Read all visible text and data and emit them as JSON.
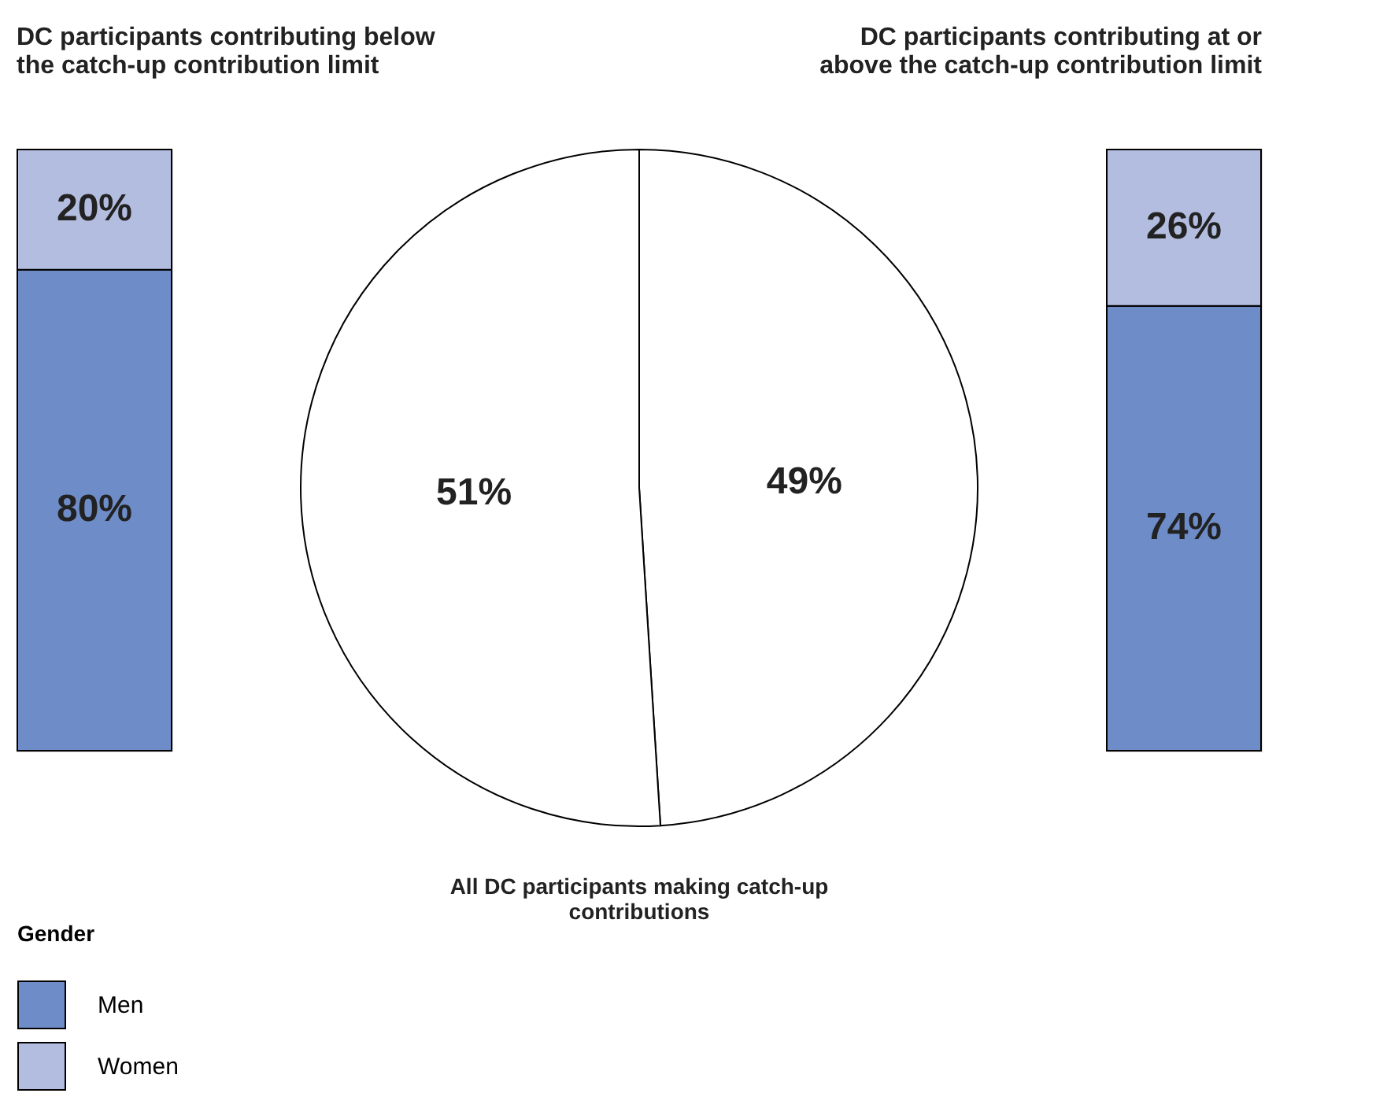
{
  "chart_data": [
    {
      "type": "bar",
      "title": "DC participants contributing below the catch-up contribution limit",
      "stacked": true,
      "categories": [
        null
      ],
      "tick_labels": false,
      "legend": "bottom left",
      "legend_title": "Gender",
      "series": [
        {
          "name": "Men",
          "color": "#6e8cc8",
          "values": [
            80
          ],
          "value_labels": [
            "80%"
          ]
        },
        {
          "name": "Women",
          "color": "#b3bde0",
          "values": [
            20
          ],
          "value_labels": [
            "20%"
          ]
        }
      ]
    },
    {
      "type": "pie",
      "categories": [
        null,
        null
      ],
      "values": [
        49,
        51
      ],
      "colors": [
        "#ffffff",
        "#ffffff"
      ],
      "value_labels": [
        "49%",
        "51%"
      ],
      "annotations": [
        "All DC participants making catch-up contributions"
      ]
    },
    {
      "type": "bar",
      "title": "DC participants contributing at or above the catch-up contribution limit",
      "stacked": true,
      "categories": [
        null
      ],
      "tick_labels": false,
      "series": [
        {
          "name": "Men",
          "color": "#6e8cc8",
          "values": [
            74
          ],
          "value_labels": [
            "74%"
          ]
        },
        {
          "name": "Women",
          "color": "#b3bde0",
          "values": [
            26
          ],
          "value_labels": [
            "26%"
          ]
        }
      ]
    }
  ]
}
